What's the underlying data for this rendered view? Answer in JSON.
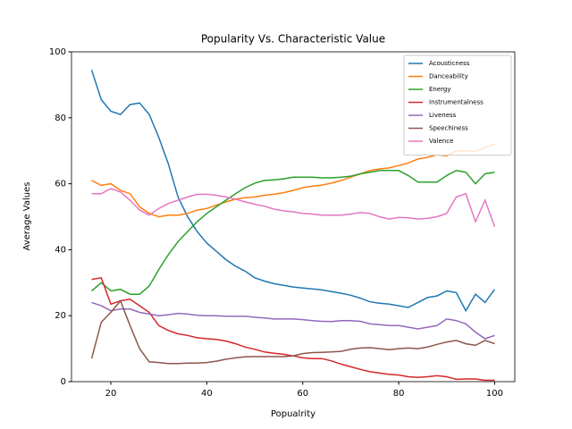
{
  "chart_data": {
    "type": "line",
    "title": "Popularity Vs. Characteristic Value",
    "x_label": "Popualrity",
    "y_label": "Average Values",
    "xlim": [
      11.8,
      104.2
    ],
    "ylim": [
      0,
      100
    ],
    "xticks": [
      20,
      40,
      60,
      80,
      100
    ],
    "yticks": [
      0,
      20,
      40,
      60,
      80,
      100
    ],
    "legend": "upper right",
    "x": [
      16,
      18,
      20,
      22,
      24,
      26,
      28,
      30,
      32,
      34,
      36,
      38,
      40,
      42,
      44,
      46,
      48,
      50,
      52,
      54,
      56,
      58,
      60,
      62,
      64,
      66,
      68,
      70,
      72,
      74,
      76,
      78,
      80,
      82,
      84,
      86,
      88,
      90,
      92,
      94,
      96,
      98,
      100
    ],
    "series": [
      {
        "name": "Acousticness",
        "color": "#1f77b4",
        "values": [
          94.5,
          85.5,
          82,
          81,
          84,
          84.5,
          81,
          74,
          66,
          56,
          50,
          45.5,
          42,
          39.5,
          37,
          35,
          33.5,
          31.5,
          30.5,
          29.7,
          29.2,
          28.7,
          28.4,
          28.1,
          27.8,
          27.3,
          26.8,
          26.2,
          25.3,
          24.2,
          23.8,
          23.5,
          23,
          22.5,
          24,
          25.5,
          26,
          27.5,
          27,
          21.5,
          26.5,
          24,
          28
        ]
      },
      {
        "name": "Danceability",
        "color": "#ff7f0e",
        "values": [
          61,
          59.5,
          60,
          58,
          57,
          53,
          51,
          50,
          50.5,
          50.5,
          51,
          52,
          52.5,
          53.5,
          54.5,
          55.3,
          55.8,
          56,
          56.5,
          56.8,
          57.3,
          58,
          58.8,
          59.3,
          59.6,
          60.2,
          61,
          62,
          63,
          64,
          64.5,
          64.8,
          65.5,
          66.3,
          67.5,
          68,
          68.8,
          68.5,
          70,
          70,
          69.8,
          71,
          72
        ]
      },
      {
        "name": "Energy",
        "color": "#2ca02c",
        "values": [
          27.5,
          30,
          27.5,
          28,
          26.5,
          26.5,
          29,
          34,
          38.5,
          42.5,
          45.5,
          48.5,
          51,
          53,
          55,
          57,
          58.8,
          60.2,
          61,
          61.2,
          61.5,
          62,
          62,
          62,
          61.8,
          61.8,
          62,
          62.3,
          63,
          63.5,
          64,
          64,
          64,
          62.5,
          60.5,
          60.5,
          60.5,
          62.5,
          64,
          63.5,
          60,
          63,
          63.5
        ]
      },
      {
        "name": "Instrumentalness",
        "color": "#d62728",
        "values": [
          31,
          31.5,
          23.5,
          24.5,
          25,
          23,
          21,
          17,
          15.5,
          14.5,
          14,
          13.3,
          13,
          12.8,
          12.3,
          11.5,
          10.5,
          9.8,
          9,
          8.6,
          8.3,
          7.8,
          7.2,
          7,
          7,
          6.3,
          5.3,
          4.5,
          3.7,
          3,
          2.6,
          2.2,
          2,
          1.5,
          1.3,
          1.5,
          1.8,
          1.5,
          0.7,
          0.8,
          0.8,
          0.4,
          0.4
        ]
      },
      {
        "name": "Liveness",
        "color": "#9467bd",
        "values": [
          24,
          23,
          21.5,
          22,
          22,
          21,
          20.5,
          20,
          20.3,
          20.7,
          20.5,
          20.1,
          20,
          20,
          19.8,
          19.8,
          19.8,
          19.5,
          19.3,
          19,
          19,
          19,
          18.8,
          18.5,
          18.3,
          18.2,
          18.5,
          18.5,
          18.3,
          17.5,
          17.3,
          17,
          17,
          16.5,
          16,
          16.5,
          17,
          19,
          18.5,
          17.5,
          15,
          13,
          14
        ]
      },
      {
        "name": "Speechiness",
        "color": "#8c564b",
        "values": [
          7,
          18,
          21,
          24.5,
          17,
          10,
          6,
          5.8,
          5.5,
          5.5,
          5.6,
          5.6,
          5.8,
          6.2,
          6.8,
          7.2,
          7.5,
          7.6,
          7.6,
          7.6,
          7.6,
          7.8,
          8.5,
          8.8,
          8.9,
          9,
          9.2,
          9.8,
          10.2,
          10.3,
          10,
          9.7,
          10,
          10.2,
          10,
          10.5,
          11.3,
          12,
          12.5,
          11.5,
          11,
          12.5,
          11.5
        ]
      },
      {
        "name": "Valence",
        "color": "#e377c2",
        "values": [
          57,
          57,
          58.5,
          57.5,
          55,
          52,
          50.5,
          52.5,
          54,
          55,
          56,
          56.8,
          56.8,
          56.5,
          56,
          55.3,
          54.5,
          53.8,
          53.2,
          52.3,
          51.8,
          51.5,
          51,
          50.8,
          50.5,
          50.5,
          50.5,
          50.8,
          51.3,
          51,
          50,
          49.3,
          49.8,
          49.7,
          49.3,
          49.5,
          50,
          51,
          56,
          57,
          48.5,
          55,
          47
        ]
      }
    ]
  }
}
